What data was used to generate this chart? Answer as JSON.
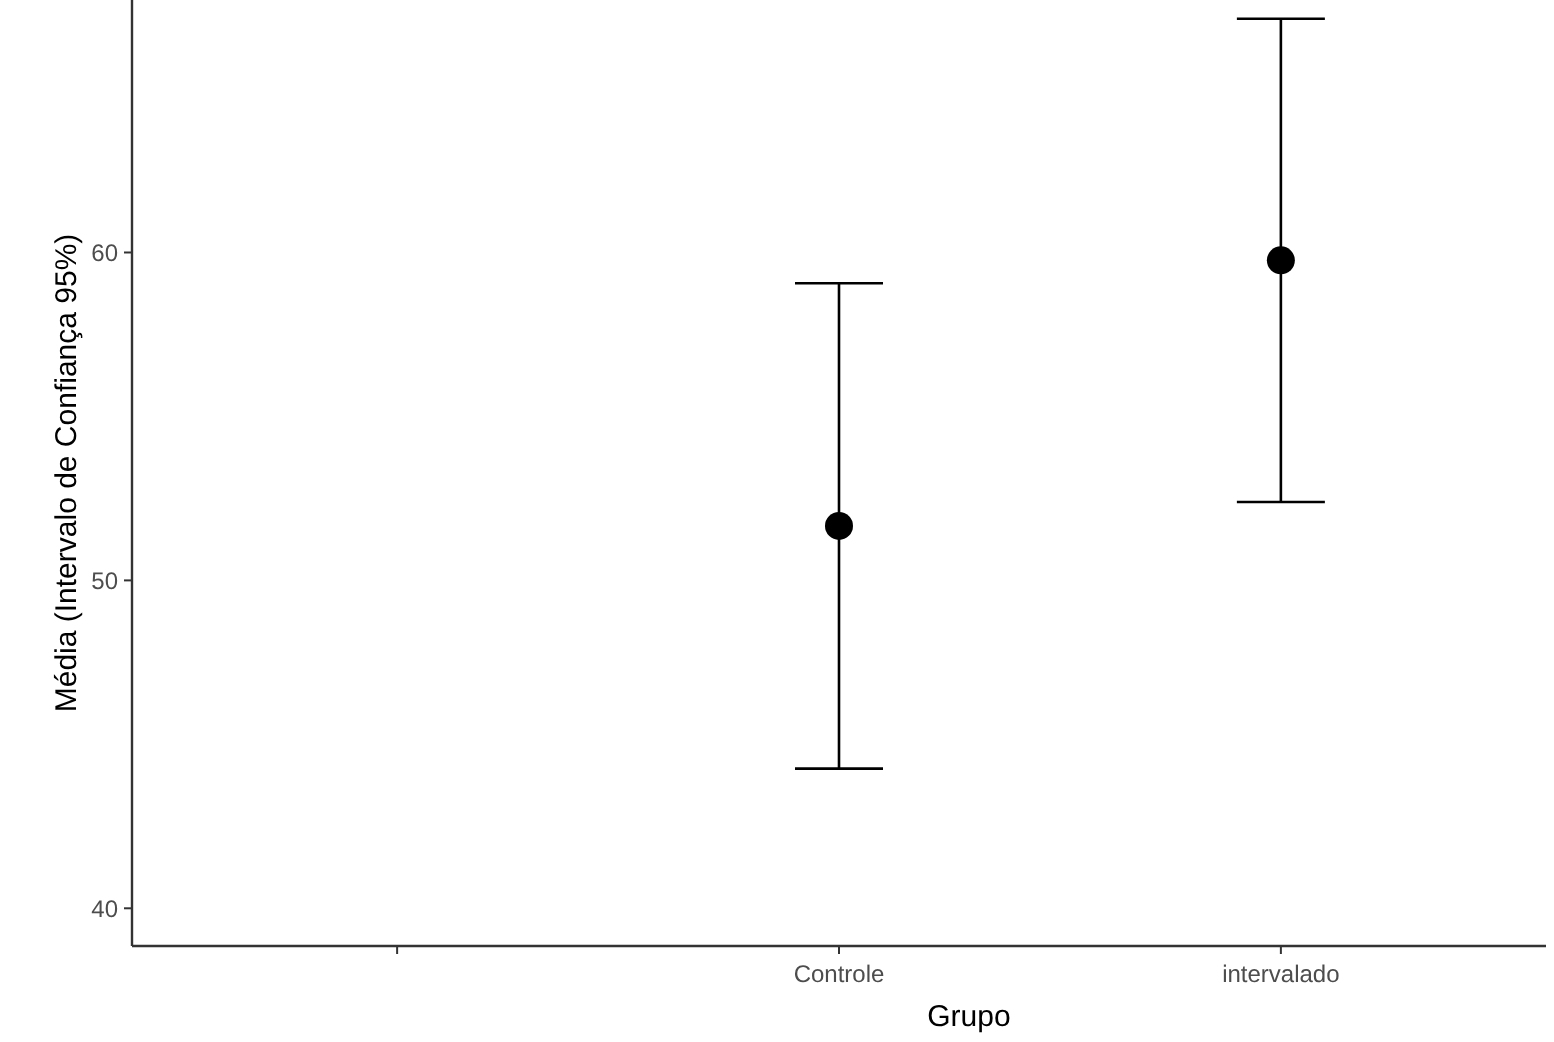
{
  "chart_data": {
    "type": "scatter",
    "xlabel": "Grupo",
    "ylabel": "Média (Intervalo de Confiança 95%)",
    "categories": [
      null,
      "Controle",
      "intervalado"
    ],
    "values": [
      null,
      51.66,
      59.76
    ],
    "errors": [
      null,
      7.4,
      7.37
    ],
    "color": "#000000",
    "marker": "circle",
    "ylim": [
      38.85,
      67.7
    ],
    "yticks": [
      40,
      50,
      60
    ],
    "grid": false
  }
}
